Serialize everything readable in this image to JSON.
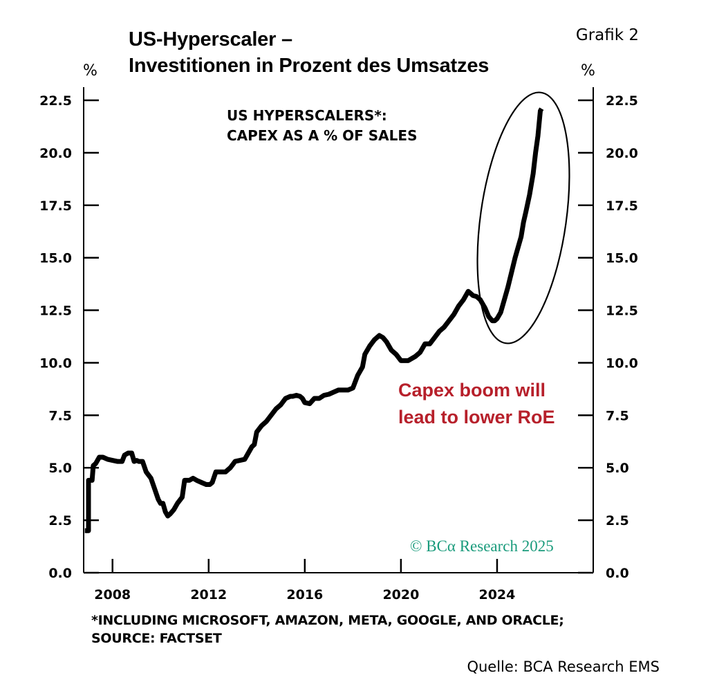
{
  "header": {
    "title_line1": "US-Hyperscaler –",
    "title_line2": "Investitionen in Prozent des Umsatzes",
    "figure_label": "Grafik 2",
    "unit_left": "%",
    "unit_right": "%"
  },
  "footer": {
    "footnote_line1": "*INCLUDING MICROSOFT, AMAZON, META, GOOGLE, AND ORACLE;",
    "footnote_line2": "SOURCE: FACTSET",
    "source": "Quelle: BCA Research EMS"
  },
  "chart_data": {
    "type": "line",
    "title": "US HYPERSCALERS*: CAPEX AS A % OF SALES",
    "title_line1": "US HYPERSCALERS*:",
    "title_line2": "CAPEX AS A % OF SALES",
    "annotation_line1": "Capex boom will",
    "annotation_line2": "lead to lower RoE",
    "watermark": "© BCα Research 2025",
    "xlim": [
      2006.8,
      2028.0
    ],
    "ylim": [
      0,
      22.5
    ],
    "x_ticks": [
      2008,
      2012,
      2016,
      2020,
      2024
    ],
    "y_ticks": [
      "0.0",
      "2.5",
      "5.0",
      "7.5",
      "10.0",
      "12.5",
      "15.0",
      "17.5",
      "20.0",
      "22.5"
    ],
    "grid": false,
    "colors": {
      "line": "#000000",
      "annotation": "#b7202b",
      "watermark": "#1a9b7c"
    },
    "series": [
      {
        "x": [
          2006.85,
          2007.0,
          2007.0,
          2007.15,
          2007.2,
          2007.3,
          2007.45,
          2007.6,
          2007.8,
          2008.0,
          2008.2,
          2008.4,
          2008.5,
          2008.65,
          2008.8,
          2008.9,
          2009.0,
          2009.1,
          2009.25,
          2009.4,
          2009.6,
          2009.75,
          2009.9,
          2010.0,
          2010.1,
          2010.2,
          2010.3,
          2010.4,
          2010.55,
          2010.7,
          2010.9,
          2011.0,
          2011.1,
          2011.2,
          2011.35,
          2011.5,
          2011.7,
          2011.9,
          2012.05,
          2012.15,
          2012.3,
          2012.5,
          2012.7,
          2012.9,
          2013.1,
          2013.3,
          2013.5,
          2013.6,
          2013.8,
          2013.9,
          2014.0,
          2014.2,
          2014.4,
          2014.6,
          2014.8,
          2015.0,
          2015.2,
          2015.4,
          2015.5,
          2015.65,
          2015.8,
          2015.9,
          2016.0,
          2016.2,
          2016.4,
          2016.6,
          2016.8,
          2017.0,
          2017.2,
          2017.4,
          2017.6,
          2017.8,
          2018.0,
          2018.2,
          2018.4,
          2018.5,
          2018.7,
          2018.9,
          2019.1,
          2019.25,
          2019.4,
          2019.6,
          2019.8,
          2020.0,
          2020.1,
          2020.3,
          2020.6,
          2020.8,
          2021.0,
          2021.2,
          2021.4,
          2021.6,
          2021.8,
          2022.0,
          2022.2,
          2022.4,
          2022.6,
          2022.8,
          2022.9,
          2023.0,
          2023.15,
          2023.3,
          2023.5,
          2023.65,
          2023.8,
          2023.9,
          2024.0,
          2024.15,
          2024.3,
          2024.45,
          2024.6,
          2024.75,
          2024.9,
          2025.0,
          2025.1,
          2025.2,
          2025.35,
          2025.5,
          2025.6,
          2025.7,
          2025.8,
          2025.85
        ],
        "y": [
          2.0,
          2.0,
          4.4,
          4.4,
          5.1,
          5.2,
          5.5,
          5.5,
          5.4,
          5.35,
          5.3,
          5.3,
          5.6,
          5.7,
          5.7,
          5.3,
          5.35,
          5.3,
          5.3,
          4.8,
          4.5,
          4.0,
          3.5,
          3.3,
          3.3,
          2.9,
          2.7,
          2.8,
          3.0,
          3.3,
          3.6,
          4.4,
          4.4,
          4.4,
          4.5,
          4.4,
          4.3,
          4.2,
          4.2,
          4.3,
          4.8,
          4.8,
          4.8,
          5.0,
          5.3,
          5.35,
          5.4,
          5.6,
          6.0,
          6.1,
          6.7,
          7.0,
          7.2,
          7.5,
          7.8,
          8.0,
          8.3,
          8.4,
          8.4,
          8.45,
          8.4,
          8.3,
          8.1,
          8.05,
          8.3,
          8.3,
          8.45,
          8.5,
          8.6,
          8.7,
          8.7,
          8.7,
          8.8,
          9.4,
          9.8,
          10.4,
          10.8,
          11.1,
          11.3,
          11.2,
          11.0,
          10.6,
          10.4,
          10.1,
          10.1,
          10.1,
          10.3,
          10.5,
          10.9,
          10.9,
          11.2,
          11.5,
          11.7,
          12.0,
          12.3,
          12.7,
          13.0,
          13.4,
          13.3,
          13.2,
          13.15,
          13.0,
          12.6,
          12.2,
          12.0,
          12.0,
          12.1,
          12.4,
          13.0,
          13.6,
          14.3,
          15.0,
          15.6,
          16.0,
          16.7,
          17.2,
          18.0,
          19.0,
          20.0,
          20.8,
          22.0,
          22.1
        ]
      }
    ]
  }
}
